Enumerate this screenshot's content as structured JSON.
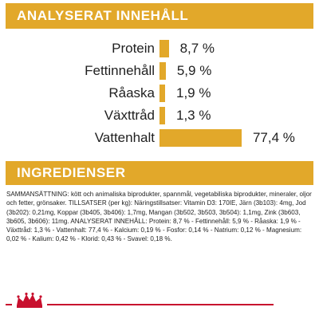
{
  "colors": {
    "accent": "#e2a82a",
    "brand_red": "#c8102e",
    "text": "#1f1f1f"
  },
  "analysis": {
    "title": "ANALYSERAT INNEHÅLL",
    "items": [
      {
        "label": "Protein",
        "value_text": "8,7 %",
        "percent": 8.7
      },
      {
        "label": "Fettinnehåll",
        "value_text": "5,9 %",
        "percent": 5.9
      },
      {
        "label": "Råaska",
        "value_text": "1,9 %",
        "percent": 1.9
      },
      {
        "label": "Växttråd",
        "value_text": "1,3 %",
        "percent": 1.3
      },
      {
        "label": "Vattenhalt",
        "value_text": "77,4 %",
        "percent": 77.4
      }
    ]
  },
  "ingredients": {
    "title": "INGREDIENSER",
    "text": "SAMMANSÄTTNING: kött och animaliska biprodukter, spannmål, vegetabiliska biprodukter, mineraler, oljor och fetter, grönsaker. TILLSATSER (per kg): Näringstillsatser: Vitamin D3: 170IE, Järn (3b103): 4mg, Jod (3b202): 0,21mg, Koppar (3b405, 3b406): 1,7mg, Mangan (3b502, 3b503, 3b504): 1,1mg, Zink (3b603, 3b605, 3b606): 11mg. ANALYSERAT INNEHÅLL: Protein: 8,7 % - Fettinnehåll: 5,9 % - Råaska: 1,9 % - Växttråd: 1,3 % - Vattenhalt: 77,4 % - Kalcium: 0,19 % - Fosfor: 0,14 % - Natrium: 0,12 % - Magnesium: 0,02 % - Kalium: 0,42 % - Klorid: 0,43 % - Svavel: 0,18 %."
  },
  "footer": {
    "logo_icon": "royal-canin-crown-icon"
  }
}
